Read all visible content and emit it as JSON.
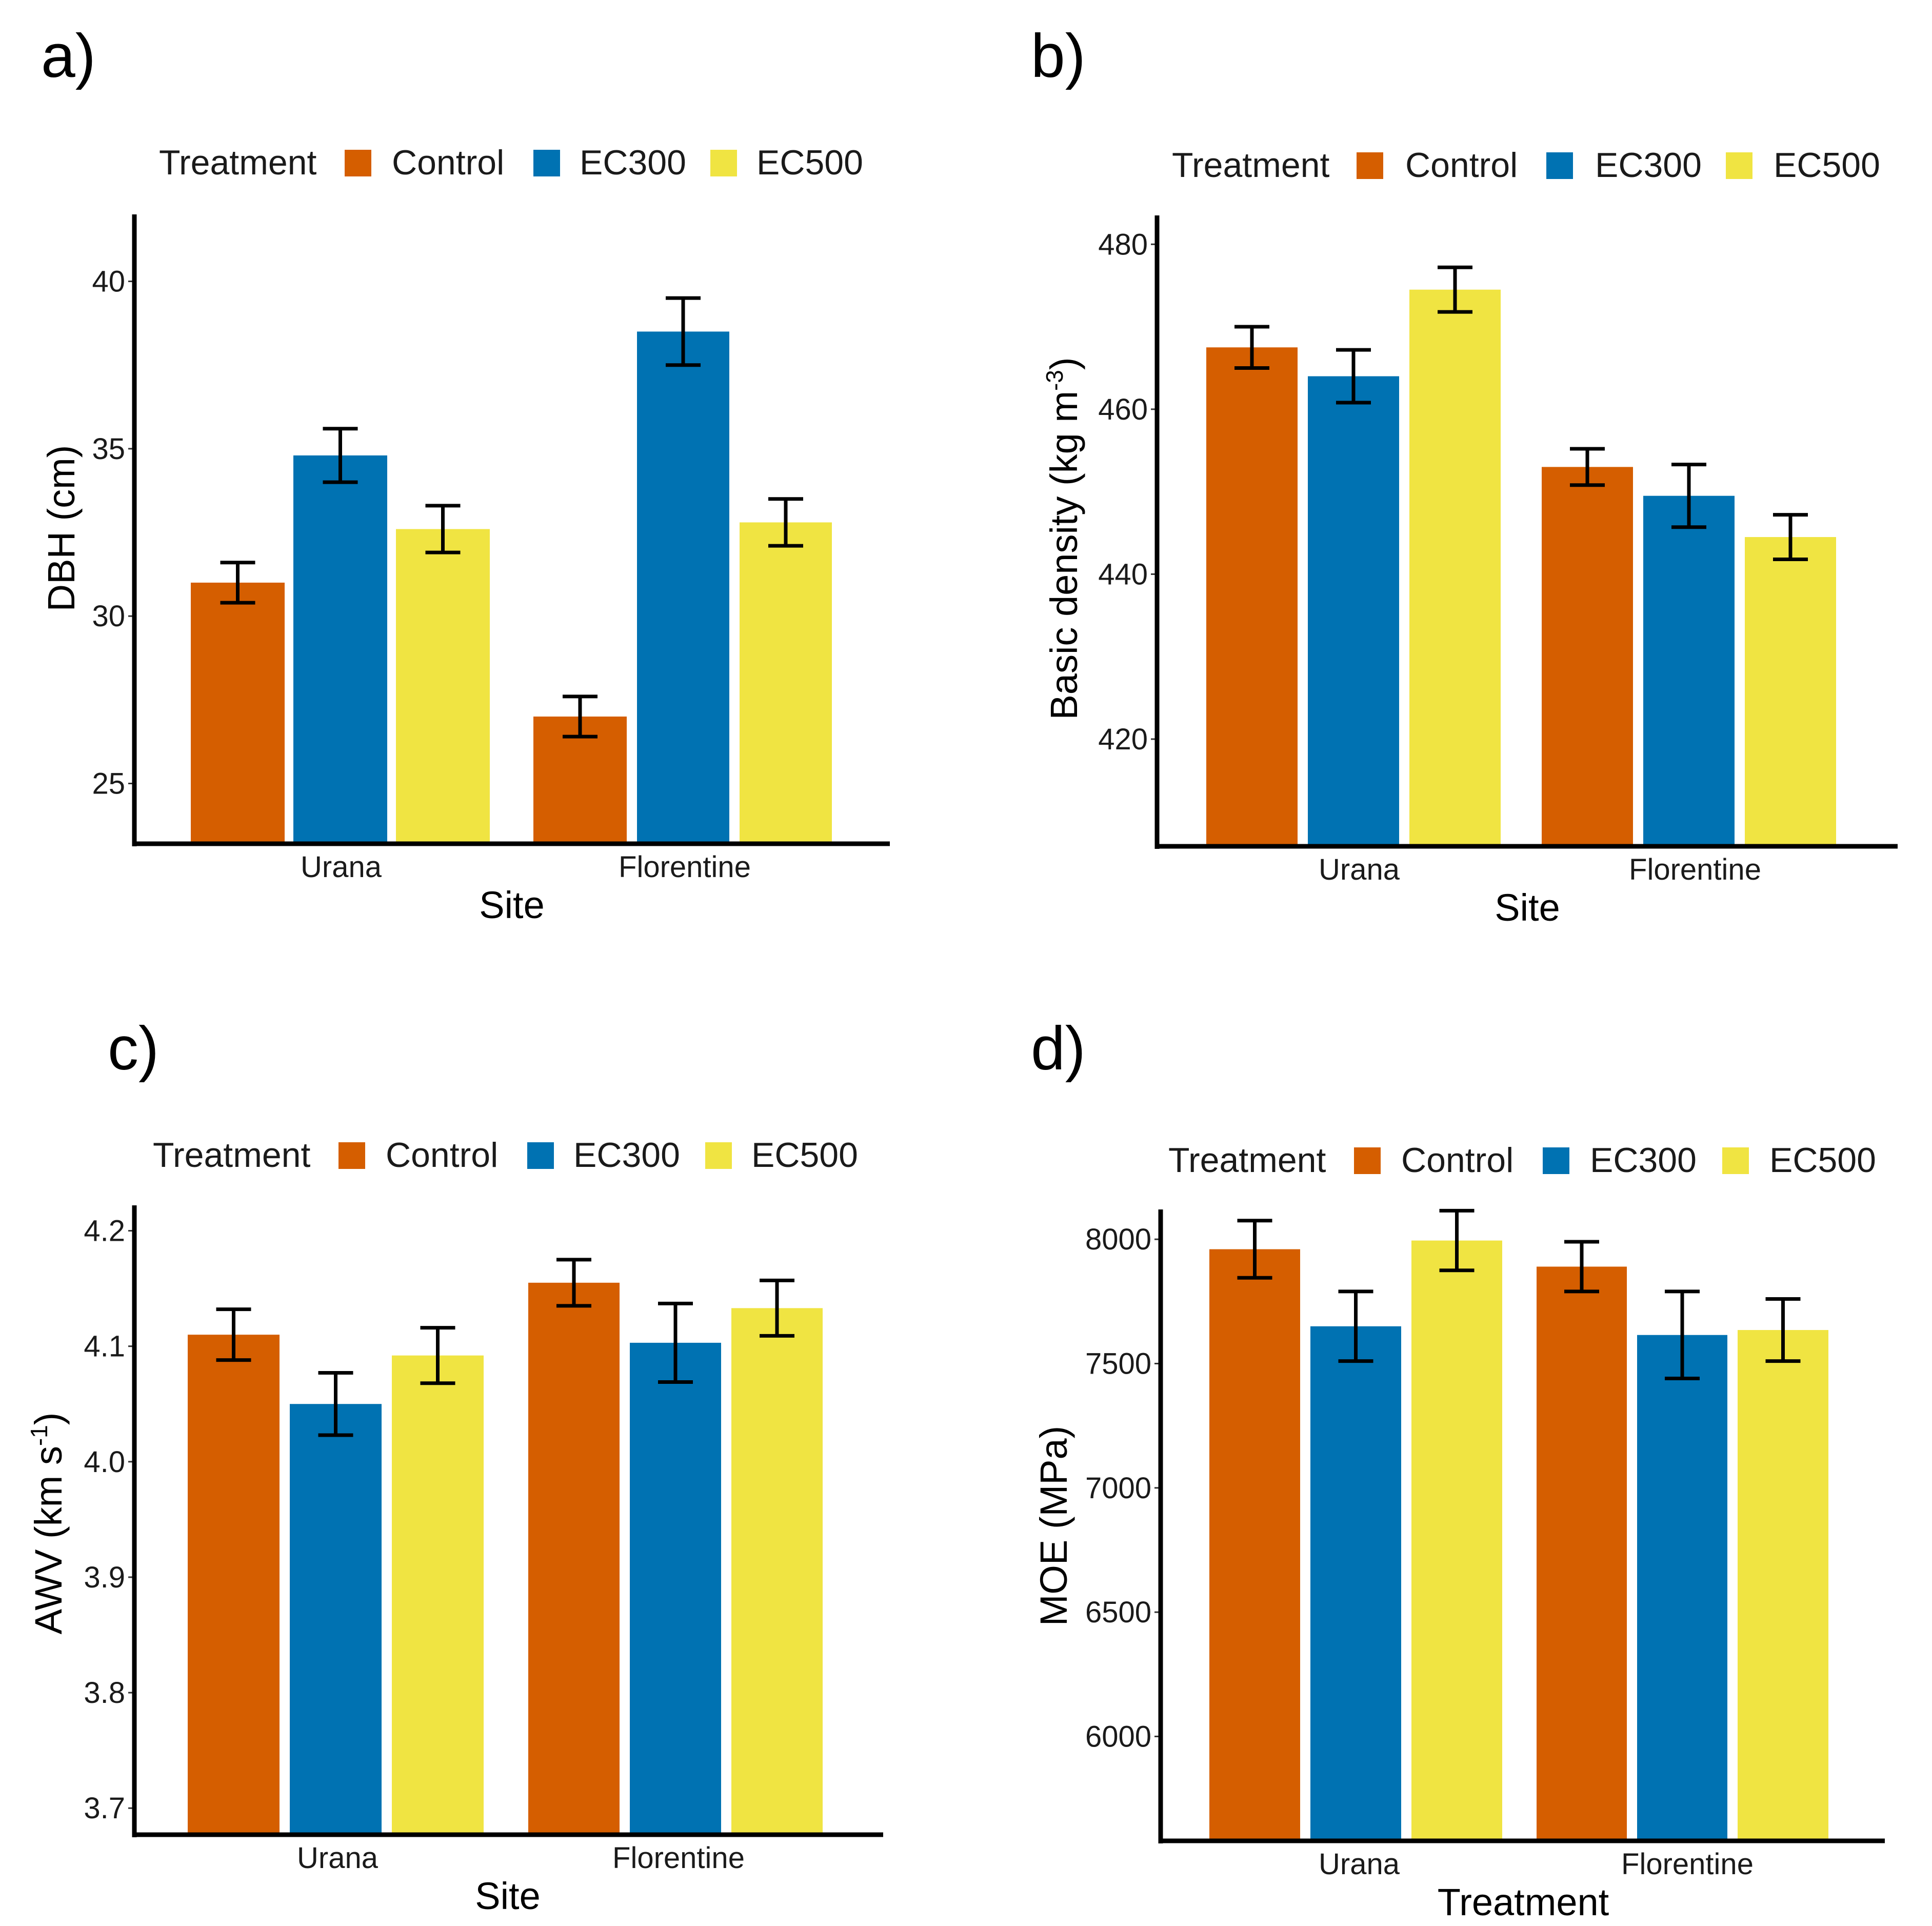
{
  "chart_data": [
    {
      "panel": "a)",
      "type": "bar",
      "legend_title": "Treatment",
      "legend_position": "top",
      "categories": [
        "Urana",
        "Florentine"
      ],
      "series": [
        {
          "name": "Control",
          "values": [
            31.0,
            27.0
          ],
          "se": [
            0.6,
            0.6
          ]
        },
        {
          "name": "EC300",
          "values": [
            34.8,
            38.5
          ],
          "se": [
            0.8,
            1.0
          ]
        },
        {
          "name": "EC500",
          "values": [
            32.6,
            32.8
          ],
          "se": [
            0.7,
            0.7
          ]
        }
      ],
      "xlabel": "Site",
      "ylabel": "DBH (cm)",
      "ylabel_sup": "",
      "ylabel_end": "",
      "ylim": [
        23.2,
        42.0
      ],
      "yticks": [
        25,
        30,
        35,
        40
      ],
      "ytick_labels": [
        "25",
        "30",
        "35",
        "40"
      ],
      "grid": false
    },
    {
      "panel": "b)",
      "type": "bar",
      "legend_title": "Treatment",
      "legend_position": "top",
      "categories": [
        "Urana",
        "Florentine"
      ],
      "series": [
        {
          "name": "Control",
          "values": [
            467.5,
            453.0
          ],
          "se": [
            2.5,
            2.2
          ]
        },
        {
          "name": "EC300",
          "values": [
            464.0,
            449.5
          ],
          "se": [
            3.2,
            3.8
          ]
        },
        {
          "name": "EC500",
          "values": [
            474.5,
            444.5
          ],
          "se": [
            2.7,
            2.7
          ]
        }
      ],
      "xlabel": "Site",
      "ylabel": "Basic density (kg m",
      "ylabel_sup": "-3",
      "ylabel_end": ")",
      "ylim": [
        407.0,
        483.5
      ],
      "yticks": [
        420,
        440,
        460,
        480
      ],
      "ytick_labels": [
        "420",
        "440",
        "460",
        "480"
      ],
      "grid": false
    },
    {
      "panel": "c)",
      "type": "bar",
      "legend_title": "Treatment",
      "legend_position": "top",
      "categories": [
        "Urana",
        "Florentine"
      ],
      "series": [
        {
          "name": "Control",
          "values": [
            4.11,
            4.155
          ],
          "se": [
            0.022,
            0.02
          ]
        },
        {
          "name": "EC300",
          "values": [
            4.05,
            4.103
          ],
          "se": [
            0.027,
            0.034
          ]
        },
        {
          "name": "EC500",
          "values": [
            4.092,
            4.133
          ],
          "se": [
            0.024,
            0.024
          ]
        }
      ],
      "xlabel": "Site",
      "ylabel": "AWV (km s",
      "ylabel_sup": "-1",
      "ylabel_end": ")",
      "ylim": [
        3.677,
        4.222
      ],
      "yticks": [
        3.7,
        3.8,
        3.9,
        4.0,
        4.1,
        4.2
      ],
      "ytick_labels": [
        "3.7",
        "3.8",
        "3.9",
        "4.0",
        "4.1",
        "4.2"
      ],
      "grid": false
    },
    {
      "panel": "d)",
      "type": "bar",
      "legend_title": "Treatment",
      "legend_position": "top",
      "categories": [
        "Urana",
        "Florentine"
      ],
      "series": [
        {
          "name": "Control",
          "values": [
            7960,
            7890
          ],
          "se": [
            115,
            100
          ]
        },
        {
          "name": "EC300",
          "values": [
            7650,
            7615
          ],
          "se": [
            140,
            175
          ]
        },
        {
          "name": "EC500",
          "values": [
            7995,
            7635
          ],
          "se": [
            120,
            125
          ]
        }
      ],
      "xlabel": "Treatment",
      "ylabel": "MOE (MPa)",
      "ylabel_sup": "",
      "ylabel_end": "",
      "ylim": [
        5580,
        8120
      ],
      "yticks": [
        6000,
        6500,
        7000,
        7500,
        8000
      ],
      "ytick_labels": [
        "6000",
        "6500",
        "7000",
        "7500",
        "8000"
      ],
      "grid": false
    }
  ],
  "colors": {
    "Control": "#D55E00",
    "EC300": "#0072B2",
    "EC500": "#F0E442"
  }
}
